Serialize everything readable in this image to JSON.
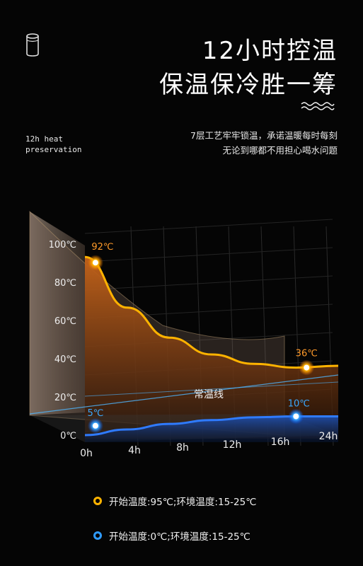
{
  "header": {
    "title_line1": "12小时控温",
    "title_line2": "保温保冷胜一筹",
    "english_tag": "12h heat preservation",
    "desc_line1": "7层工艺牢牢锁温，承诺温暖每时每刻",
    "desc_line2": "无论到哪都不用担心喝水问题",
    "icons": [
      "cup-icon",
      "wave-icon"
    ]
  },
  "chart_data": {
    "type": "line",
    "x": [
      "0h",
      "4h",
      "8h",
      "12h",
      "16h",
      "24h"
    ],
    "y_ticks": [
      "100℃",
      "80℃",
      "60℃",
      "40℃",
      "20℃",
      "0℃"
    ],
    "ylim": [
      0,
      100
    ],
    "reference_line_label": "常温线",
    "series": [
      {
        "color": "#ffb300",
        "points": [
          [
            0,
            95
          ],
          [
            4,
            68
          ],
          [
            8,
            52
          ],
          [
            12,
            43
          ],
          [
            16,
            38
          ],
          [
            20,
            36
          ],
          [
            24,
            37
          ]
        ],
        "annotations": [
          {
            "x": 1,
            "y": 92,
            "label": "92℃"
          },
          {
            "x": 21,
            "y": 36,
            "label": "36℃"
          }
        ]
      },
      {
        "color": "#2f7bff",
        "points": [
          [
            0,
            0
          ],
          [
            4,
            3
          ],
          [
            8,
            6
          ],
          [
            12,
            8
          ],
          [
            16,
            9.5
          ],
          [
            20,
            10
          ],
          [
            24,
            10
          ]
        ],
        "annotations": [
          {
            "x": 1,
            "y": 5,
            "label": "5℃"
          },
          {
            "x": 20,
            "y": 10,
            "label": "10℃"
          }
        ]
      }
    ],
    "colors": {
      "hot": "#ffb300",
      "cold": "#2f7bff",
      "reference": "#4fb6ff"
    }
  },
  "legend": [
    {
      "label": "开始温度:95℃;环境温度:15-25℃",
      "color": "#ffb300"
    },
    {
      "label": "开始温度:0℃;环境温度:15-25℃",
      "color": "#2f9bff"
    }
  ]
}
